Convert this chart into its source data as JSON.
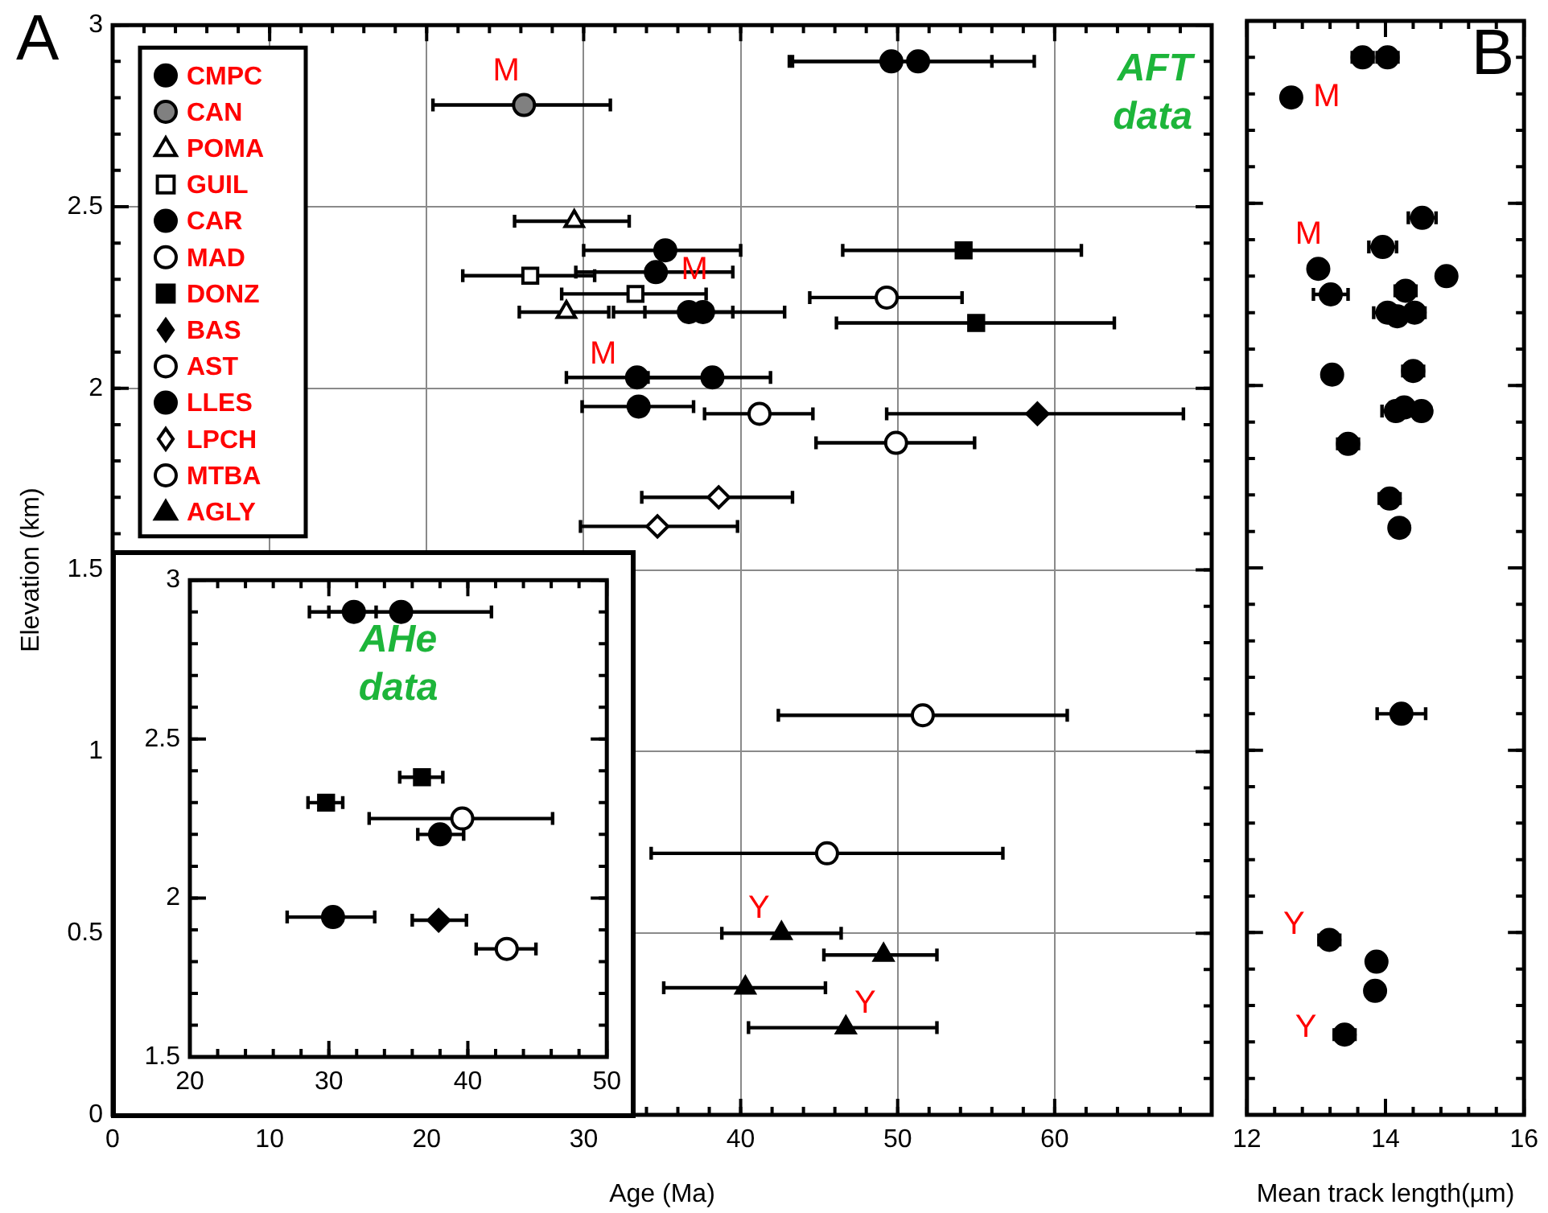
{
  "chart_data": [
    {
      "type": "scatter",
      "title": "A",
      "xlabel": "Age (Ma)",
      "ylabel": "Elevation (km)",
      "xlim": [
        0,
        70
      ],
      "ylim": [
        0,
        3
      ],
      "xticks": [
        0,
        10,
        20,
        30,
        40,
        50,
        60
      ],
      "yticks": [
        0,
        0.5,
        1,
        1.5,
        2,
        2.5,
        3
      ],
      "grid": true,
      "legend": "top left",
      "series": [
        {
          "name": "CMPC",
          "color": "#000000",
          "marker": "circle",
          "x": [
            49.6,
            51.3
          ],
          "values": [
            2.9,
            2.9
          ],
          "xerrors": [
            [
              43.1,
              56.0
            ],
            [
              43.3,
              58.7
            ]
          ]
        },
        {
          "name": "CAN",
          "color": "#808080",
          "marker": "circle",
          "x": [
            26.2
          ],
          "values": [
            2.78
          ],
          "xerrors": [
            [
              20.4,
              31.7
            ]
          ]
        },
        {
          "name": "POMA",
          "color": "#ffffff",
          "marker": "triangle",
          "x": [
            29.4,
            28.9
          ],
          "values": [
            2.46,
            2.21
          ],
          "xerrors": [
            [
              25.6,
              32.9
            ],
            [
              25.9,
              31.6
            ]
          ]
        },
        {
          "name": "GUIL",
          "color": "#ffffff",
          "marker": "square",
          "x": [
            26.6,
            33.3
          ],
          "values": [
            2.31,
            2.26
          ],
          "xerrors": [
            [
              22.3,
              30.7
            ],
            [
              28.6,
              37.8
            ]
          ]
        },
        {
          "name": "CAR",
          "color": "#000000",
          "marker": "circle",
          "x": [
            35.2,
            34.6,
            36.7,
            37.6,
            33.4,
            38.2
          ],
          "values": [
            2.38,
            2.32,
            2.21,
            2.21,
            2.03,
            2.03
          ],
          "xerrors": [
            [
              30.0,
              40.0
            ],
            [
              29.5,
              39.5
            ],
            [
              31.9,
              39.5
            ],
            [
              33.9,
              42.8
            ],
            [
              28.9,
              37.8
            ],
            [
              34.1,
              41.9
            ]
          ]
        },
        {
          "name": "MAD",
          "color": "#ffffff",
          "marker": "circle",
          "x": [
            49.3
          ],
          "values": [
            2.25
          ],
          "xerrors": [
            [
              44.4,
              54.1
            ]
          ]
        },
        {
          "name": "DONZ",
          "color": "#000000",
          "marker": "square",
          "x": [
            54.2,
            55.0
          ],
          "values": [
            2.38,
            2.18
          ],
          "xerrors": [
            [
              46.5,
              61.7
            ],
            [
              46.1,
              63.8
            ]
          ]
        },
        {
          "name": "BAS",
          "color": "#000000",
          "marker": "diamond",
          "x": [
            58.9
          ],
          "values": [
            1.93
          ],
          "xerrors": [
            [
              49.3,
              68.2
            ]
          ]
        },
        {
          "name": "AST",
          "color": "#ffffff",
          "marker": "circle",
          "x": [
            41.2,
            49.9
          ],
          "values": [
            1.93,
            1.85
          ],
          "xerrors": [
            [
              37.7,
              44.6
            ],
            [
              44.8,
              54.9
            ]
          ]
        },
        {
          "name": "LLES",
          "color": "#000000",
          "marker": "circle",
          "x": [
            33.5
          ],
          "values": [
            1.95
          ],
          "xerrors": [
            [
              29.9,
              37.0
            ]
          ]
        },
        {
          "name": "LPCH",
          "color": "#ffffff",
          "marker": "diamond",
          "x": [
            38.6,
            34.7
          ],
          "values": [
            1.7,
            1.62
          ],
          "xerrors": [
            [
              33.7,
              43.3
            ],
            [
              29.8,
              39.8
            ]
          ]
        },
        {
          "name": "MTBA",
          "color": "#ffffff",
          "marker": "circle",
          "x": [
            51.6,
            45.5
          ],
          "values": [
            1.1,
            0.72
          ],
          "xerrors": [
            [
              42.4,
              60.8
            ],
            [
              34.3,
              56.7
            ]
          ]
        },
        {
          "name": "AGLY",
          "color": "#000000",
          "marker": "triangle",
          "x": [
            42.6,
            49.1,
            40.3,
            46.7
          ],
          "values": [
            0.5,
            0.44,
            0.35,
            0.24
          ],
          "xerrors": [
            [
              38.8,
              46.4
            ],
            [
              45.3,
              52.5
            ],
            [
              35.1,
              45.4
            ],
            [
              40.5,
              52.5
            ]
          ]
        }
      ],
      "annotations": [
        "AFT data",
        {
          "text": "M",
          "x": 26.2,
          "y": 2.78
        },
        {
          "text": "M",
          "x": 34.6,
          "y": 2.32
        },
        {
          "text": "M",
          "x": 33.4,
          "y": 2.03
        },
        {
          "text": "Y",
          "x": 42.6,
          "y": 0.5
        },
        {
          "text": "Y",
          "x": 46.7,
          "y": 0.24
        }
      ]
    },
    {
      "type": "scatter",
      "xlim": [
        20,
        50
      ],
      "ylim": [
        1.5,
        3
      ],
      "xticks": [
        20,
        30,
        40,
        50
      ],
      "yticks": [
        1.5,
        2,
        2.5,
        3
      ],
      "series": [
        {
          "color": "#000000",
          "marker": "circle",
          "x": [
            31.8,
            35.2
          ],
          "values": [
            2.9,
            2.9
          ],
          "xerrors": [
            [
              28.6,
              33.4
            ],
            [
              30.0,
              41.7
            ]
          ]
        },
        {
          "color": "#000000",
          "marker": "square",
          "x": [
            36.7,
            29.8
          ],
          "values": [
            2.38,
            2.3
          ],
          "xerrors": [
            [
              35.1,
              38.2
            ],
            [
              28.5,
              31.0
            ]
          ]
        },
        {
          "color": "#ffffff",
          "marker": "circle",
          "x": [
            39.6
          ],
          "values": [
            2.25
          ],
          "xerrors": [
            [
              32.9,
              46.1
            ]
          ]
        },
        {
          "color": "#000000",
          "marker": "circle",
          "x": [
            38.0
          ],
          "values": [
            2.2
          ],
          "xerrors": [
            [
              36.4,
              39.7
            ]
          ]
        },
        {
          "color": "#000000",
          "marker": "circle",
          "x": [
            30.3
          ],
          "values": [
            1.94
          ],
          "xerrors": [
            [
              27.0,
              33.3
            ]
          ]
        },
        {
          "color": "#000000",
          "marker": "diamond",
          "x": [
            37.9
          ],
          "values": [
            1.93
          ],
          "xerrors": [
            [
              36.0,
              39.9
            ]
          ]
        },
        {
          "color": "#ffffff",
          "marker": "circle",
          "x": [
            42.8
          ],
          "values": [
            1.84
          ],
          "xerrors": [
            [
              40.6,
              44.9
            ]
          ]
        }
      ],
      "annotations": [
        "AHe data"
      ]
    },
    {
      "type": "scatter",
      "title": "B",
      "xlabel": "Mean track length(µm)",
      "xlim": [
        12,
        16
      ],
      "ylim": [
        0,
        3
      ],
      "xticks": [
        12,
        14,
        16
      ],
      "yticks": [
        0,
        0.5,
        1,
        1.5,
        2,
        2.5,
        3
      ],
      "tick_labels": "x",
      "series": [
        {
          "color": "#000000",
          "marker": "circle",
          "x": [
            13.67,
            14.03,
            12.64,
            14.53,
            13.96,
            13.03,
            14.88,
            13.21,
            14.29,
            14.03,
            14.17,
            14.42,
            13.23,
            14.4,
            14.15,
            14.27,
            14.52,
            13.46,
            14.06,
            14.2,
            14.23,
            13.19,
            13.87,
            13.85,
            13.41
          ],
          "values": [
            2.9,
            2.9,
            2.79,
            2.46,
            2.38,
            2.32,
            2.3,
            2.25,
            2.26,
            2.2,
            2.19,
            2.2,
            2.03,
            2.04,
            1.93,
            1.94,
            1.93,
            1.84,
            1.69,
            1.61,
            1.1,
            0.48,
            0.42,
            0.34,
            0.22
          ],
          "xerrors": [
            0.15,
            0.15,
            null,
            0.2,
            0.2,
            null,
            null,
            0.25,
            0.15,
            0.2,
            null,
            0.15,
            null,
            0.15,
            0.2,
            0.2,
            null,
            0.15,
            0.15,
            0.12,
            0.35,
            0.15,
            0.12,
            0.12,
            0.15
          ]
        }
      ],
      "annotations": [
        {
          "text": "M",
          "x": 12.64,
          "y": 2.79
        },
        {
          "text": "M",
          "x": 13.03,
          "y": 2.32
        },
        {
          "text": "Y",
          "x": 13.19,
          "y": 0.48
        },
        {
          "text": "Y",
          "x": 13.41,
          "y": 0.22
        }
      ]
    }
  ]
}
